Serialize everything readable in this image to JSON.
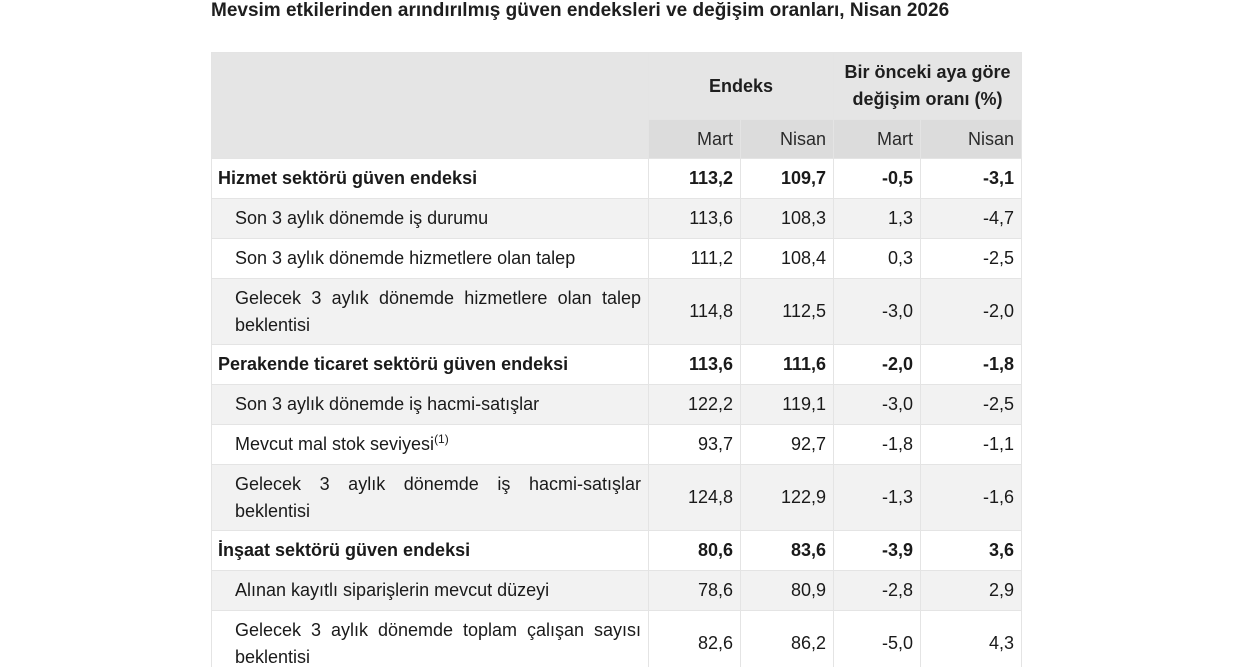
{
  "title": "Mevsim etkilerinden arındırılmış güven endeksleri ve değişim oranları, Nisan 2026",
  "table": {
    "header": {
      "group_index": "Endeks",
      "group_change": "Bir önceki aya göre değişim oranı (%)",
      "sub": [
        "Mart",
        "Nisan",
        "Mart",
        "Nisan"
      ]
    },
    "rows": [
      {
        "label": "Hizmet sektörü güven endeksi",
        "sup": "",
        "type": "main",
        "values": [
          "113,2",
          "109,7",
          "-0,5",
          "-3,1"
        ]
      },
      {
        "label": "Son 3 aylık dönemde iş durumu",
        "sup": "",
        "type": "sub",
        "values": [
          "113,6",
          "108,3",
          "1,3",
          "-4,7"
        ]
      },
      {
        "label": "Son 3 aylık dönemde hizmetlere olan talep",
        "sup": "",
        "type": "sub",
        "values": [
          "111,2",
          "108,4",
          "0,3",
          "-2,5"
        ]
      },
      {
        "label": "Gelecek 3 aylık dönemde hizmetlere olan talep beklentisi",
        "sup": "",
        "type": "sub",
        "values": [
          "114,8",
          "112,5",
          "-3,0",
          "-2,0"
        ]
      },
      {
        "label": "Perakende ticaret sektörü güven endeksi",
        "sup": "",
        "type": "main",
        "values": [
          "113,6",
          "111,6",
          "-2,0",
          "-1,8"
        ]
      },
      {
        "label": "Son 3 aylık dönemde iş hacmi-satışlar",
        "sup": "",
        "type": "sub",
        "values": [
          "122,2",
          "119,1",
          "-3,0",
          "-2,5"
        ]
      },
      {
        "label": "Mevcut mal stok seviyesi",
        "sup": "(1)",
        "type": "sub",
        "values": [
          "93,7",
          "92,7",
          "-1,8",
          "-1,1"
        ]
      },
      {
        "label": "Gelecek 3 aylık dönemde iş hacmi-satışlar beklentisi",
        "sup": "",
        "type": "sub",
        "values": [
          "124,8",
          "122,9",
          "-1,3",
          "-1,6"
        ]
      },
      {
        "label": "İnşaat sektörü güven endeksi",
        "sup": "",
        "type": "main",
        "values": [
          "80,6",
          "83,6",
          "-3,9",
          "3,6"
        ]
      },
      {
        "label": "Alınan kayıtlı siparişlerin mevcut düzeyi",
        "sup": "",
        "type": "sub",
        "values": [
          "78,6",
          "80,9",
          "-2,8",
          "2,9"
        ]
      },
      {
        "label": "Gelecek 3 aylık dönemde toplam çalışan sayısı beklentisi",
        "sup": "",
        "type": "sub",
        "values": [
          "82,6",
          "86,2",
          "-5,0",
          "4,3"
        ]
      }
    ]
  },
  "colors": {
    "header_bg": "#e5e5e5",
    "subheader_bg": "#dcdcdc",
    "stripe_bg": "#f2f2f2",
    "border": "#e4e4e4",
    "text": "#1a1a1a"
  }
}
